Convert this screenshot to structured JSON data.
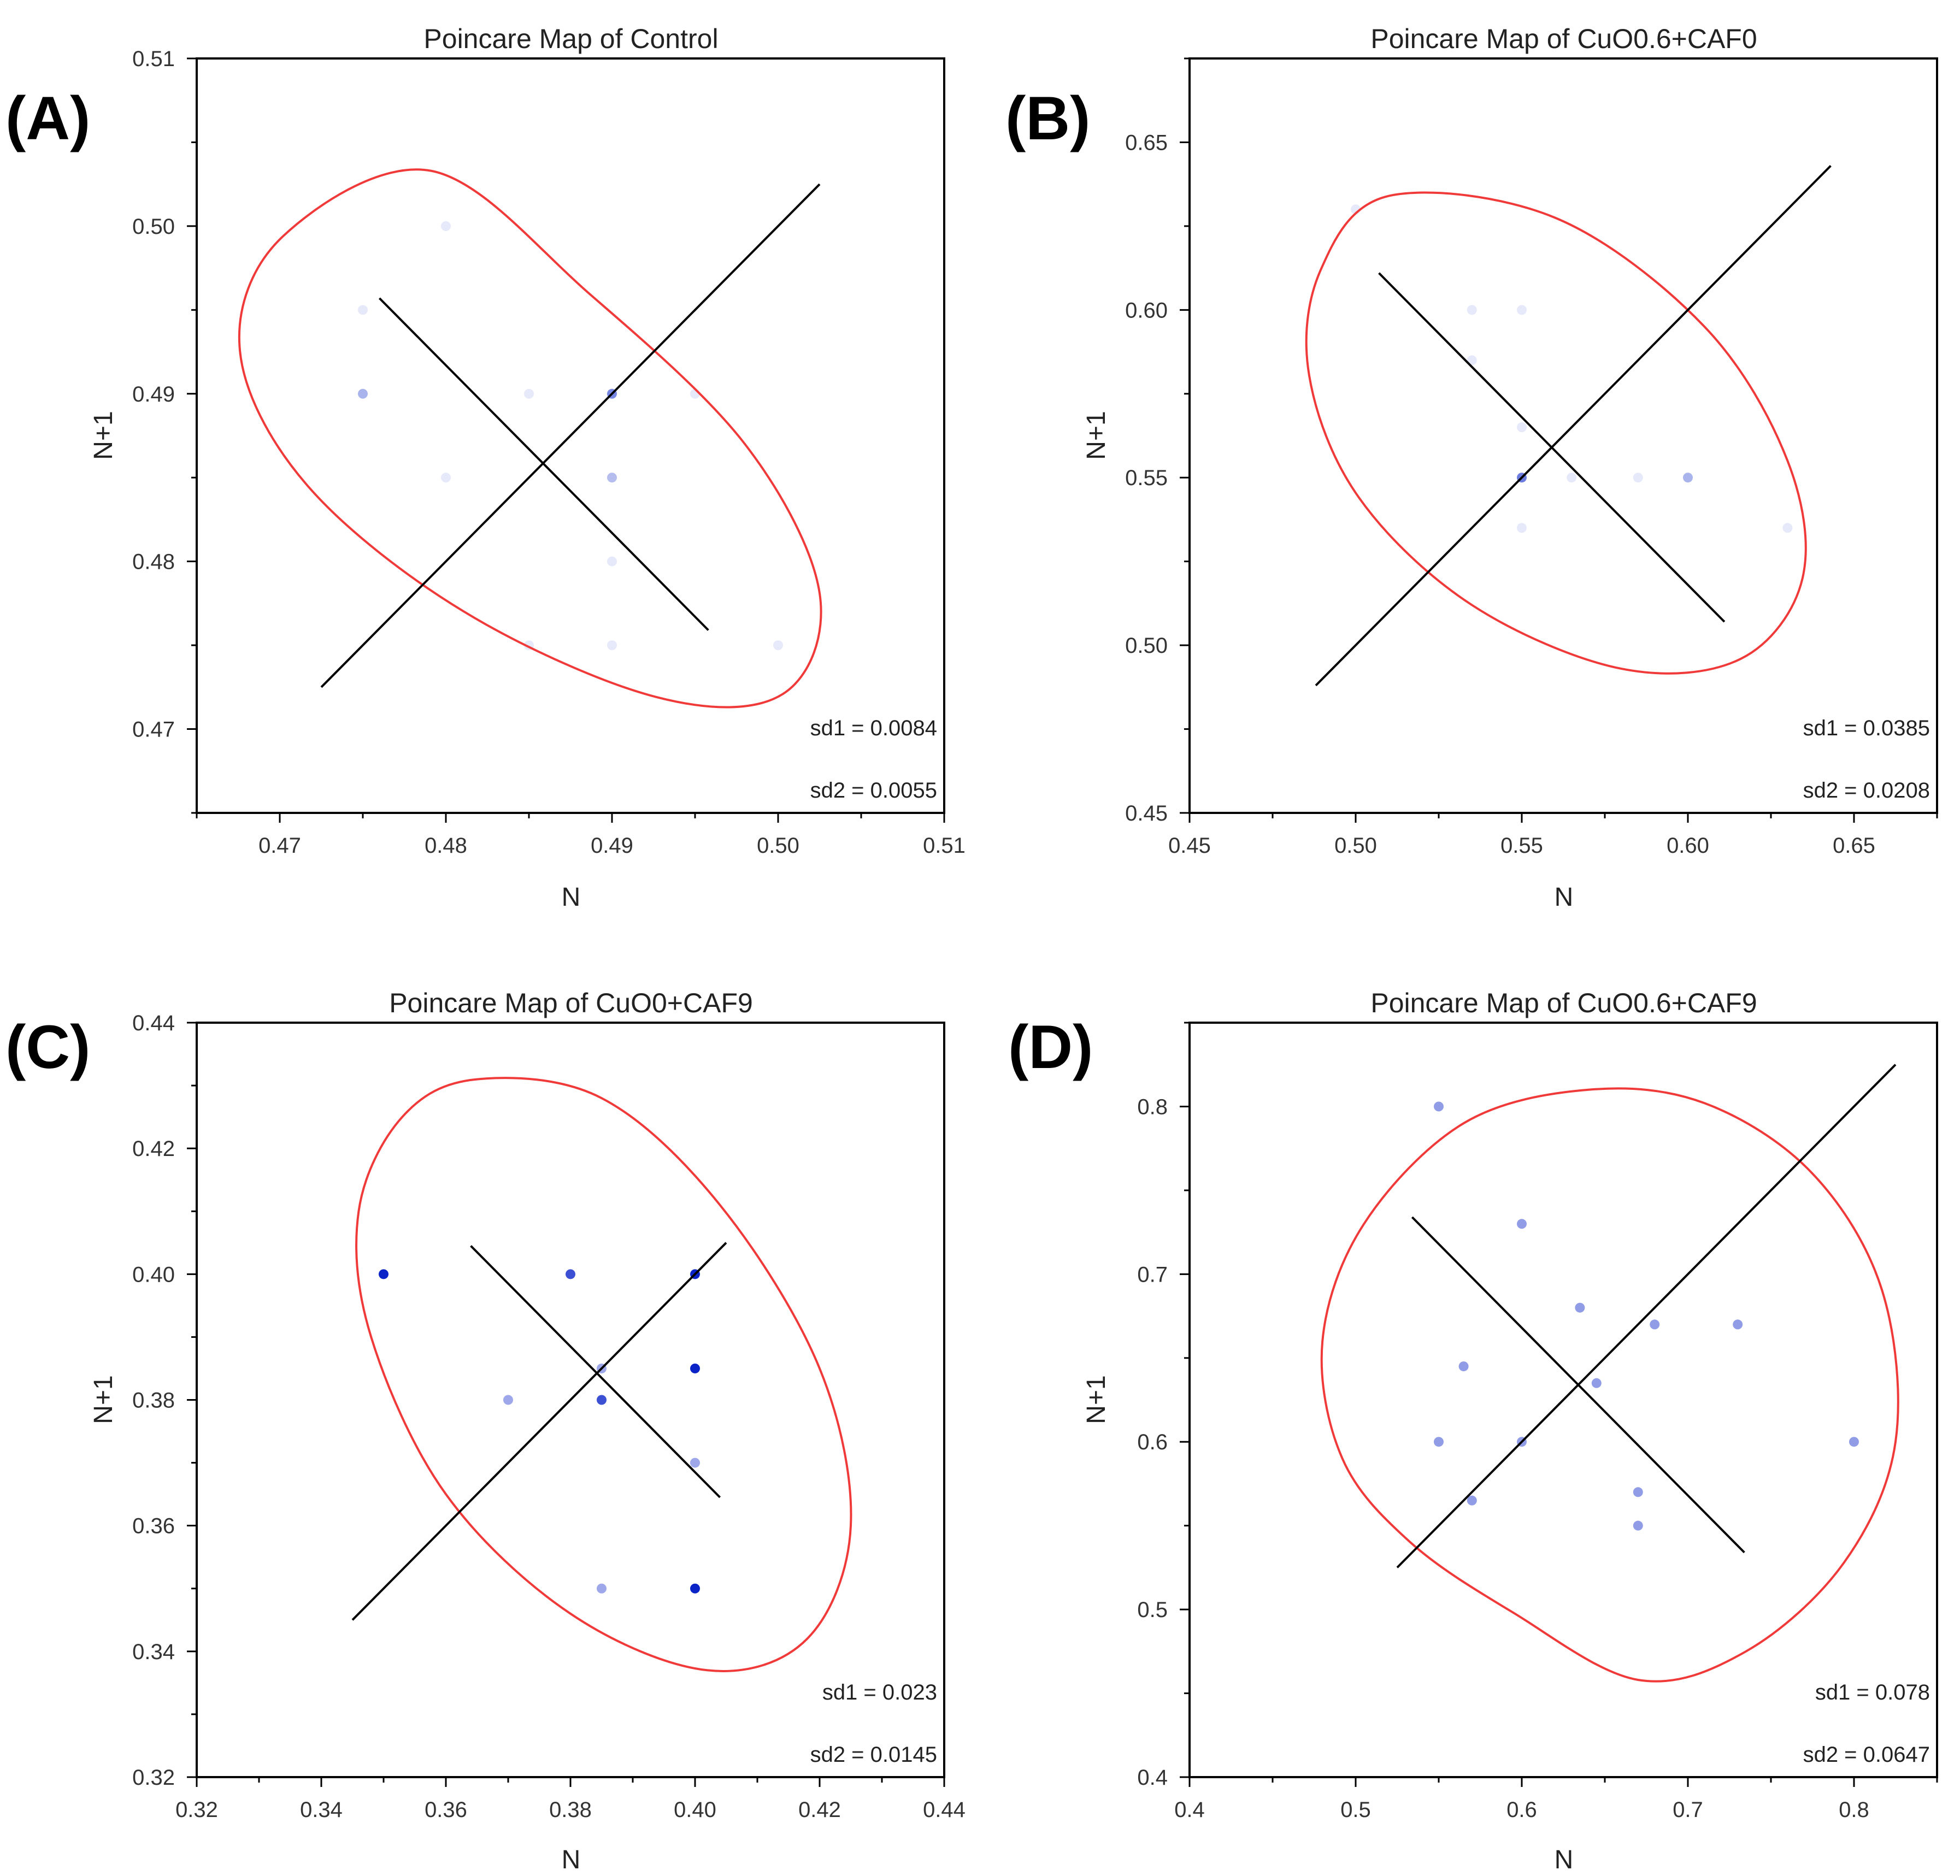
{
  "figure": {
    "colors": {
      "ellipse": "#f03a3a",
      "cross": "#000000",
      "point": "#0a24c8",
      "frame": "#000000"
    }
  },
  "chart_data": [
    {
      "type": "scatter",
      "panel_label": "(A)",
      "title": "Poincare Map of Control",
      "xlabel": "N",
      "ylabel": "N+1",
      "xlim": [
        0.465,
        0.51
      ],
      "ylim": [
        0.465,
        0.51
      ],
      "xticks": [
        0.47,
        0.48,
        0.49,
        0.5,
        0.51
      ],
      "yticks": [
        0.47,
        0.48,
        0.49,
        0.5,
        0.51
      ],
      "xtick_labels": [
        "0.47",
        "0.48",
        "0.49",
        "0.50",
        "0.51"
      ],
      "ytick_labels": [
        "0.47",
        "0.48",
        "0.49",
        "0.50",
        "0.51"
      ],
      "points": [
        {
          "x": 0.475,
          "y": 0.495,
          "w": 0.1
        },
        {
          "x": 0.475,
          "y": 0.49,
          "w": 0.35
        },
        {
          "x": 0.48,
          "y": 0.5,
          "w": 0.1
        },
        {
          "x": 0.48,
          "y": 0.485,
          "w": 0.1
        },
        {
          "x": 0.485,
          "y": 0.49,
          "w": 0.1
        },
        {
          "x": 0.485,
          "y": 0.475,
          "w": 0.1
        },
        {
          "x": 0.49,
          "y": 0.49,
          "w": 0.55
        },
        {
          "x": 0.49,
          "y": 0.485,
          "w": 0.3
        },
        {
          "x": 0.49,
          "y": 0.48,
          "w": 0.1
        },
        {
          "x": 0.49,
          "y": 0.475,
          "w": 0.1
        },
        {
          "x": 0.495,
          "y": 0.49,
          "w": 0.1
        },
        {
          "x": 0.5,
          "y": 0.475,
          "w": 0.1
        }
      ],
      "ellipse_points": [
        [
          0.4791,
          0.5033
        ],
        [
          0.4702,
          0.4994
        ],
        [
          0.4676,
          0.4926
        ],
        [
          0.4716,
          0.4846
        ],
        [
          0.4811,
          0.477
        ],
        [
          0.4927,
          0.4719
        ],
        [
          0.5003,
          0.4721
        ],
        [
          0.5025,
          0.4781
        ],
        [
          0.498,
          0.487
        ],
        [
          0.4886,
          0.496
        ]
      ],
      "cross": {
        "major": [
          [
            0.4725,
            0.4725
          ],
          [
            0.5025,
            0.5025
          ]
        ],
        "minor": [
          [
            0.476,
            0.4957
          ],
          [
            0.4958,
            0.4759
          ]
        ]
      },
      "sd1": "sd1 = 0.0084",
      "sd2": "sd2 = 0.0055"
    },
    {
      "type": "scatter",
      "panel_label": "(B)",
      "title": "Poincare Map of CuO0.6+CAF0",
      "xlabel": "N",
      "ylabel": "N+1",
      "xlim": [
        0.45,
        0.675
      ],
      "ylim": [
        0.45,
        0.675
      ],
      "xticks": [
        0.45,
        0.5,
        0.55,
        0.6,
        0.65
      ],
      "yticks": [
        0.45,
        0.5,
        0.55,
        0.6,
        0.65
      ],
      "xtick_labels": [
        "0.45",
        "0.50",
        "0.55",
        "0.60",
        "0.65"
      ],
      "ytick_labels": [
        "0.45",
        "0.50",
        "0.55",
        "0.60",
        "0.65"
      ],
      "points": [
        {
          "x": 0.5,
          "y": 0.63,
          "w": 0.1
        },
        {
          "x": 0.535,
          "y": 0.6,
          "w": 0.1
        },
        {
          "x": 0.55,
          "y": 0.6,
          "w": 0.1
        },
        {
          "x": 0.535,
          "y": 0.585,
          "w": 0.1
        },
        {
          "x": 0.55,
          "y": 0.565,
          "w": 0.1
        },
        {
          "x": 0.55,
          "y": 0.55,
          "w": 0.6
        },
        {
          "x": 0.565,
          "y": 0.55,
          "w": 0.1
        },
        {
          "x": 0.585,
          "y": 0.55,
          "w": 0.1
        },
        {
          "x": 0.6,
          "y": 0.55,
          "w": 0.35
        },
        {
          "x": 0.55,
          "y": 0.535,
          "w": 0.1
        },
        {
          "x": 0.63,
          "y": 0.535,
          "w": 0.1
        }
      ],
      "ellipse_points": [
        [
          0.51,
          0.634
        ],
        [
          0.4895,
          0.612
        ],
        [
          0.486,
          0.5805
        ],
        [
          0.501,
          0.544
        ],
        [
          0.535,
          0.512
        ],
        [
          0.58,
          0.493
        ],
        [
          0.616,
          0.496
        ],
        [
          0.6345,
          0.52
        ],
        [
          0.63,
          0.555
        ],
        [
          0.605,
          0.595
        ],
        [
          0.56,
          0.6275
        ]
      ],
      "cross": {
        "major": [
          [
            0.488,
            0.488
          ],
          [
            0.643,
            0.643
          ]
        ],
        "minor": [
          [
            0.507,
            0.611
          ],
          [
            0.611,
            0.507
          ]
        ]
      },
      "sd1": "sd1 = 0.0385",
      "sd2": "sd2 = 0.0208"
    },
    {
      "type": "scatter",
      "panel_label": "(C)",
      "title": "Poincare Map of CuO0+CAF9",
      "xlabel": "N",
      "ylabel": "N+1",
      "xlim": [
        0.32,
        0.44
      ],
      "ylim": [
        0.32,
        0.44
      ],
      "xticks": [
        0.32,
        0.34,
        0.36,
        0.38,
        0.4,
        0.42,
        0.44
      ],
      "yticks": [
        0.32,
        0.34,
        0.36,
        0.38,
        0.4,
        0.42,
        0.44
      ],
      "xtick_labels": [
        "0.32",
        "0.34",
        "0.36",
        "0.38",
        "0.40",
        "0.42",
        "0.44"
      ],
      "ytick_labels": [
        "0.32",
        "0.34",
        "0.36",
        "0.38",
        "0.40",
        "0.42",
        "0.44"
      ],
      "points": [
        {
          "x": 0.35,
          "y": 0.4,
          "w": 1.0
        },
        {
          "x": 0.38,
          "y": 0.4,
          "w": 0.8
        },
        {
          "x": 0.4,
          "y": 0.4,
          "w": 1.0
        },
        {
          "x": 0.385,
          "y": 0.385,
          "w": 0.4
        },
        {
          "x": 0.4,
          "y": 0.385,
          "w": 1.0
        },
        {
          "x": 0.37,
          "y": 0.38,
          "w": 0.4
        },
        {
          "x": 0.385,
          "y": 0.38,
          "w": 0.8
        },
        {
          "x": 0.4,
          "y": 0.37,
          "w": 0.4
        },
        {
          "x": 0.385,
          "y": 0.35,
          "w": 0.4
        },
        {
          "x": 0.4,
          "y": 0.35,
          "w": 1.0
        }
      ],
      "ellipse_points": [
        [
          0.365,
          0.431
        ],
        [
          0.353,
          0.425
        ],
        [
          0.346,
          0.41
        ],
        [
          0.348,
          0.39
        ],
        [
          0.36,
          0.365
        ],
        [
          0.38,
          0.346
        ],
        [
          0.402,
          0.337
        ],
        [
          0.418,
          0.342
        ],
        [
          0.425,
          0.36
        ],
        [
          0.42,
          0.385
        ],
        [
          0.404,
          0.411
        ],
        [
          0.385,
          0.428
        ]
      ],
      "cross": {
        "major": [
          [
            0.345,
            0.345
          ],
          [
            0.405,
            0.405
          ]
        ],
        "minor": [
          [
            0.364,
            0.4045
          ],
          [
            0.404,
            0.3645
          ]
        ]
      },
      "sd1": "sd1 = 0.023",
      "sd2": "sd2 = 0.0145"
    },
    {
      "type": "scatter",
      "panel_label": "(D)",
      "title": "Poincare Map of CuO0.6+CAF9",
      "xlabel": "N",
      "ylabel": "N+1",
      "xlim": [
        0.4,
        0.85
      ],
      "ylim": [
        0.4,
        0.85
      ],
      "xticks": [
        0.4,
        0.5,
        0.6,
        0.7,
        0.8
      ],
      "yticks": [
        0.4,
        0.5,
        0.6,
        0.7,
        0.8
      ],
      "xtick_labels": [
        "0.4",
        "0.5",
        "0.6",
        "0.7",
        "0.8"
      ],
      "ytick_labels": [
        "0.4",
        "0.5",
        "0.6",
        "0.7",
        "0.8"
      ],
      "points": [
        {
          "x": 0.55,
          "y": 0.8,
          "w": 0.45
        },
        {
          "x": 0.6,
          "y": 0.73,
          "w": 0.45
        },
        {
          "x": 0.635,
          "y": 0.68,
          "w": 0.45
        },
        {
          "x": 0.68,
          "y": 0.67,
          "w": 0.45
        },
        {
          "x": 0.73,
          "y": 0.67,
          "w": 0.45
        },
        {
          "x": 0.565,
          "y": 0.645,
          "w": 0.45
        },
        {
          "x": 0.645,
          "y": 0.635,
          "w": 0.45
        },
        {
          "x": 0.55,
          "y": 0.6,
          "w": 0.45
        },
        {
          "x": 0.6,
          "y": 0.6,
          "w": 0.45
        },
        {
          "x": 0.8,
          "y": 0.6,
          "w": 0.45
        },
        {
          "x": 0.57,
          "y": 0.565,
          "w": 0.45
        },
        {
          "x": 0.67,
          "y": 0.57,
          "w": 0.45
        },
        {
          "x": 0.67,
          "y": 0.55,
          "w": 0.45
        }
      ],
      "ellipse_points": [
        [
          0.64,
          0.81
        ],
        [
          0.565,
          0.79
        ],
        [
          0.505,
          0.73
        ],
        [
          0.48,
          0.66
        ],
        [
          0.492,
          0.59
        ],
        [
          0.533,
          0.54
        ],
        [
          0.595,
          0.498
        ],
        [
          0.67,
          0.458
        ],
        [
          0.735,
          0.475
        ],
        [
          0.794,
          0.528
        ],
        [
          0.825,
          0.6
        ],
        [
          0.817,
          0.69
        ],
        [
          0.775,
          0.76
        ],
        [
          0.71,
          0.802
        ]
      ],
      "cross": {
        "major": [
          [
            0.525,
            0.525
          ],
          [
            0.825,
            0.825
          ]
        ],
        "minor": [
          [
            0.534,
            0.734
          ],
          [
            0.734,
            0.534
          ]
        ]
      },
      "sd1": "sd1 = 0.078",
      "sd2": "sd2 = 0.0647"
    }
  ]
}
